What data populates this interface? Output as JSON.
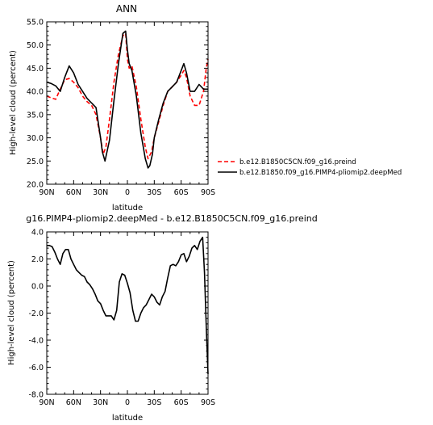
{
  "chart_data": [
    {
      "type": "line",
      "title": "ANN",
      "xlabel": "latitude",
      "ylabel": "High-level cloud (percent)",
      "x_tick_labels": [
        "90N",
        "60N",
        "30N",
        "0",
        "30S",
        "60S",
        "90S"
      ],
      "x_tick_values": [
        90,
        60,
        30,
        0,
        -30,
        -60,
        -90
      ],
      "xlim": [
        90,
        -90
      ],
      "y_tick_labels": [
        "20.0",
        "25.0",
        "30.0",
        "35.0",
        "40.0",
        "45.0",
        "50.0",
        "55.0"
      ],
      "y_tick_values": [
        20,
        25,
        30,
        35,
        40,
        45,
        50,
        55
      ],
      "ylim": [
        20,
        55
      ],
      "grid": false,
      "legend_position": "right",
      "series": [
        {
          "name": "b.e12.B1850C5CN.f09_g16.preind",
          "color": "#ff0000",
          "dash": "dashed",
          "x": [
            90,
            85,
            80,
            75,
            70,
            65,
            60,
            55,
            50,
            45,
            40,
            35,
            30,
            27,
            24,
            20,
            15,
            10,
            5,
            2,
            0,
            -2,
            -5,
            -10,
            -15,
            -20,
            -23,
            -27,
            -30,
            -35,
            -40,
            -45,
            -50,
            -55,
            -60,
            -63,
            -66,
            -70,
            -75,
            -80,
            -85,
            -88,
            -90
          ],
          "y": [
            39.0,
            38.6,
            38.3,
            40.5,
            42.5,
            42.8,
            42.0,
            40.8,
            39.0,
            37.8,
            37.0,
            35.0,
            30.0,
            26.5,
            28.0,
            34.0,
            42.0,
            48.0,
            52.0,
            52.5,
            47.0,
            45.0,
            45.5,
            41.0,
            34.0,
            28.0,
            25.5,
            27.0,
            30.0,
            33.5,
            37.0,
            40.0,
            41.0,
            42.0,
            43.5,
            44.5,
            43.0,
            39.0,
            37.0,
            37.0,
            40.0,
            45.0,
            47.0
          ]
        },
        {
          "name": "b.e12.B1850.f09_g16.PIMP4-pliomip2.deepMed",
          "color": "#000000",
          "dash": "solid",
          "x": [
            90,
            85,
            80,
            75,
            70,
            65,
            60,
            55,
            50,
            45,
            40,
            35,
            30,
            28,
            25,
            20,
            15,
            10,
            5,
            2,
            0,
            -2,
            -5,
            -10,
            -15,
            -20,
            -23,
            -25,
            -28,
            -30,
            -35,
            -40,
            -45,
            -50,
            -55,
            -60,
            -63,
            -66,
            -70,
            -75,
            -80,
            -85,
            -90
          ],
          "y": [
            42.0,
            41.7,
            41.2,
            40.0,
            43.0,
            45.5,
            44.0,
            41.5,
            40.0,
            38.5,
            37.5,
            36.5,
            30.0,
            27.0,
            25.0,
            29.5,
            38.0,
            46.0,
            52.5,
            53.0,
            49.0,
            46.0,
            44.5,
            39.0,
            31.0,
            25.5,
            23.5,
            24.0,
            26.5,
            30.0,
            34.0,
            37.5,
            40.0,
            41.0,
            42.0,
            44.5,
            46.0,
            44.0,
            40.0,
            40.0,
            41.5,
            40.5,
            40.5
          ]
        }
      ]
    },
    {
      "type": "line",
      "title": "g16.PIMP4-pliomip2.deepMed - b.e12.B1850C5CN.f09_g16.preind",
      "xlabel": "latitude",
      "ylabel": "High-level cloud (percent)",
      "x_tick_labels": [
        "90N",
        "60N",
        "30N",
        "0",
        "30S",
        "60S",
        "90S"
      ],
      "x_tick_values": [
        90,
        60,
        30,
        0,
        -30,
        -60,
        -90
      ],
      "xlim": [
        90,
        -90
      ],
      "y_tick_labels": [
        "4.0",
        "2.0",
        "0.0",
        "-2.0",
        "-4.0",
        "-6.0",
        "-8.0"
      ],
      "y_tick_values": [
        4,
        2,
        0,
        -2,
        -4,
        -6,
        -8
      ],
      "ylim": [
        -8,
        4
      ],
      "grid": false,
      "series": [
        {
          "color": "#000000",
          "dash": "solid",
          "x": [
            90,
            87,
            84,
            81,
            78,
            75,
            72,
            69,
            66,
            63,
            60,
            57,
            54,
            51,
            48,
            45,
            42,
            39,
            36,
            33,
            30,
            27,
            24,
            21,
            18,
            15,
            12,
            9,
            6,
            3,
            0,
            -3,
            -6,
            -9,
            -12,
            -15,
            -18,
            -21,
            -24,
            -27,
            -30,
            -33,
            -36,
            -39,
            -42,
            -45,
            -48,
            -51,
            -54,
            -57,
            -60,
            -63,
            -66,
            -69,
            -72,
            -75,
            -78,
            -81,
            -84,
            -86,
            -88,
            -90
          ],
          "y": [
            3.0,
            3.0,
            2.9,
            2.5,
            2.0,
            1.6,
            2.4,
            2.7,
            2.7,
            2.0,
            1.6,
            1.2,
            1.0,
            0.8,
            0.7,
            0.3,
            0.1,
            -0.2,
            -0.6,
            -1.1,
            -1.3,
            -1.8,
            -2.2,
            -2.2,
            -2.2,
            -2.5,
            -1.8,
            0.3,
            0.9,
            0.8,
            0.2,
            -0.5,
            -1.8,
            -2.6,
            -2.6,
            -2.0,
            -1.6,
            -1.4,
            -1.0,
            -0.6,
            -0.8,
            -1.2,
            -1.4,
            -0.8,
            -0.4,
            0.6,
            1.5,
            1.6,
            1.5,
            1.8,
            2.3,
            2.4,
            1.8,
            2.2,
            2.8,
            3.0,
            2.7,
            3.3,
            3.6,
            1.0,
            -3.0,
            -6.5
          ]
        }
      ]
    }
  ]
}
